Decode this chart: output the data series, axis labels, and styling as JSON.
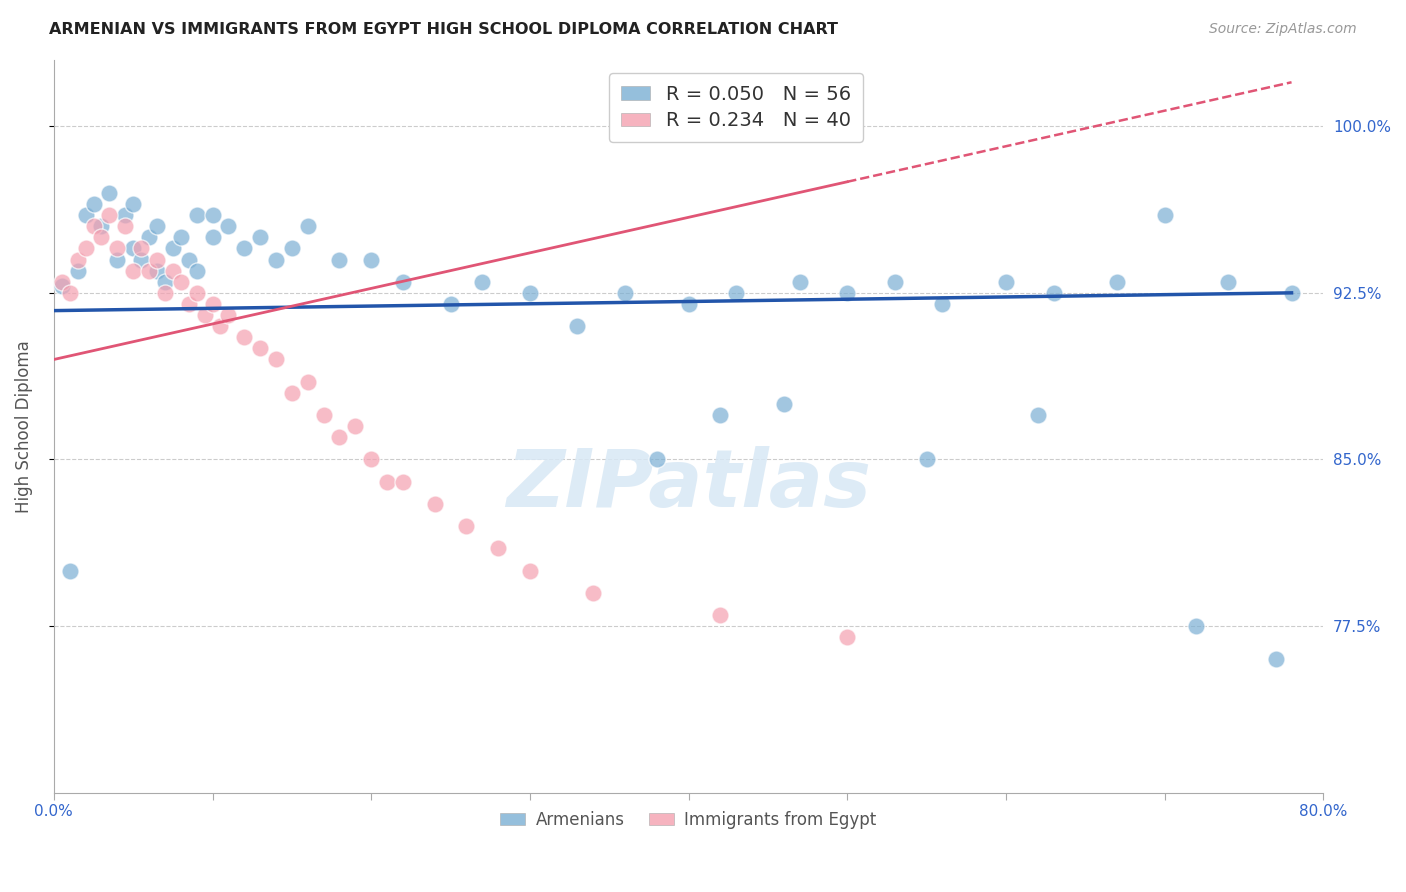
{
  "title": "ARMENIAN VS IMMIGRANTS FROM EGYPT HIGH SCHOOL DIPLOMA CORRELATION CHART",
  "source": "Source: ZipAtlas.com",
  "ylabel": "High School Diploma",
  "watermark": "ZIPatlas",
  "xlim": [
    0.0,
    0.8
  ],
  "ylim": [
    0.7,
    1.03
  ],
  "xticks": [
    0.0,
    0.1,
    0.2,
    0.3,
    0.4,
    0.5,
    0.6,
    0.7,
    0.8
  ],
  "xticklabels": [
    "0.0%",
    "",
    "",
    "",
    "",
    "",
    "",
    "",
    "80.0%"
  ],
  "ytick_positions": [
    0.775,
    0.85,
    0.925,
    1.0
  ],
  "yticklabels": [
    "77.5%",
    "85.0%",
    "92.5%",
    "100.0%"
  ],
  "color_armenian": "#7BAFD4",
  "color_egypt": "#F4A0B0",
  "color_trendline_armenian": "#2255AA",
  "color_trendline_egypt": "#E05575",
  "grid_color": "#CCCCCC",
  "background_color": "#FFFFFF",
  "armenian_x": [
    0.005,
    0.01,
    0.015,
    0.02,
    0.025,
    0.03,
    0.035,
    0.04,
    0.045,
    0.05,
    0.05,
    0.055,
    0.06,
    0.065,
    0.065,
    0.07,
    0.075,
    0.08,
    0.085,
    0.09,
    0.09,
    0.1,
    0.1,
    0.11,
    0.12,
    0.13,
    0.14,
    0.15,
    0.16,
    0.18,
    0.2,
    0.22,
    0.25,
    0.27,
    0.3,
    0.33,
    0.36,
    0.4,
    0.43,
    0.47,
    0.5,
    0.53,
    0.56,
    0.6,
    0.63,
    0.67,
    0.7,
    0.74,
    0.77,
    0.78,
    0.38,
    0.42,
    0.46,
    0.55,
    0.62,
    0.72
  ],
  "armenian_y": [
    0.928,
    0.8,
    0.935,
    0.96,
    0.965,
    0.955,
    0.97,
    0.94,
    0.96,
    0.945,
    0.965,
    0.94,
    0.95,
    0.935,
    0.955,
    0.93,
    0.945,
    0.95,
    0.94,
    0.935,
    0.96,
    0.96,
    0.95,
    0.955,
    0.945,
    0.95,
    0.94,
    0.945,
    0.955,
    0.94,
    0.94,
    0.93,
    0.92,
    0.93,
    0.925,
    0.91,
    0.925,
    0.92,
    0.925,
    0.93,
    0.925,
    0.93,
    0.92,
    0.93,
    0.925,
    0.93,
    0.96,
    0.93,
    0.76,
    0.925,
    0.85,
    0.87,
    0.875,
    0.85,
    0.87,
    0.775
  ],
  "egypt_x": [
    0.005,
    0.01,
    0.015,
    0.02,
    0.025,
    0.03,
    0.035,
    0.04,
    0.045,
    0.05,
    0.055,
    0.06,
    0.065,
    0.07,
    0.075,
    0.08,
    0.085,
    0.09,
    0.095,
    0.1,
    0.105,
    0.11,
    0.12,
    0.13,
    0.14,
    0.15,
    0.16,
    0.17,
    0.18,
    0.19,
    0.2,
    0.21,
    0.22,
    0.24,
    0.26,
    0.28,
    0.3,
    0.34,
    0.42,
    0.5
  ],
  "egypt_y": [
    0.93,
    0.925,
    0.94,
    0.945,
    0.955,
    0.95,
    0.96,
    0.945,
    0.955,
    0.935,
    0.945,
    0.935,
    0.94,
    0.925,
    0.935,
    0.93,
    0.92,
    0.925,
    0.915,
    0.92,
    0.91,
    0.915,
    0.905,
    0.9,
    0.895,
    0.88,
    0.885,
    0.87,
    0.86,
    0.865,
    0.85,
    0.84,
    0.84,
    0.83,
    0.82,
    0.81,
    0.8,
    0.79,
    0.78,
    0.77
  ],
  "legend_r1": "R = 0.050",
  "legend_n1": "N = 56",
  "legend_r2": "R = 0.234",
  "legend_n2": "N = 40"
}
